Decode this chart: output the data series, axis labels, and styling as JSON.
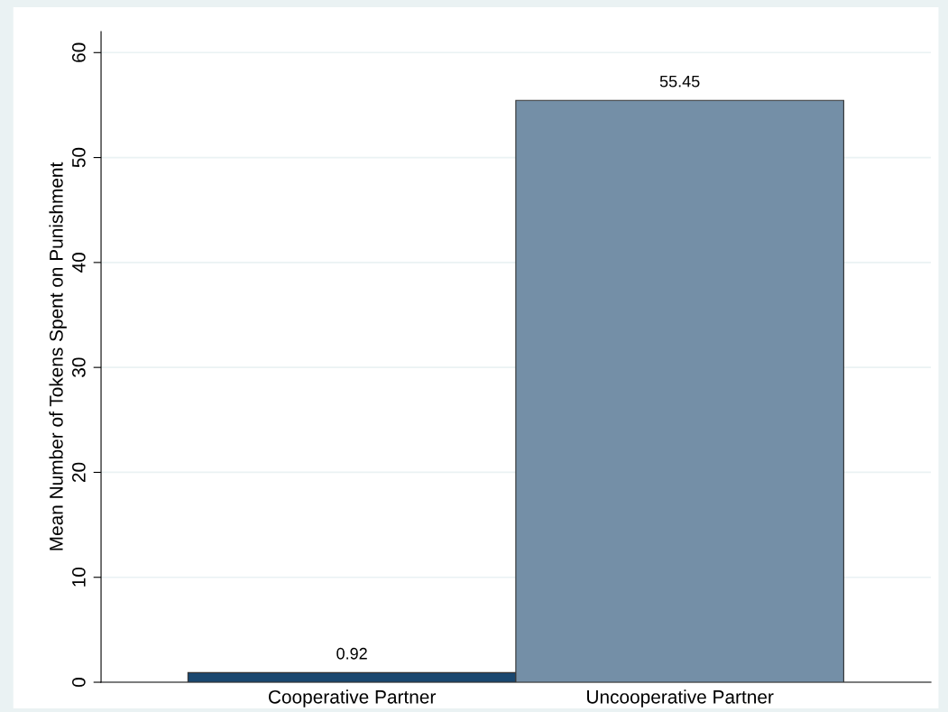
{
  "chart_data": {
    "type": "bar",
    "ylabel": "Mean Number of Tokens Spent on Punishment",
    "categories": [
      "Cooperative Partner",
      "Uncooperative Partner"
    ],
    "values": [
      0.92,
      55.45
    ],
    "colors": [
      "#1a476f",
      "#748fa7"
    ],
    "data_labels": true,
    "ylim": [
      0,
      62
    ],
    "yticks": [
      0,
      10,
      20,
      30,
      40,
      50,
      60
    ],
    "grid": "y",
    "legend": false
  }
}
